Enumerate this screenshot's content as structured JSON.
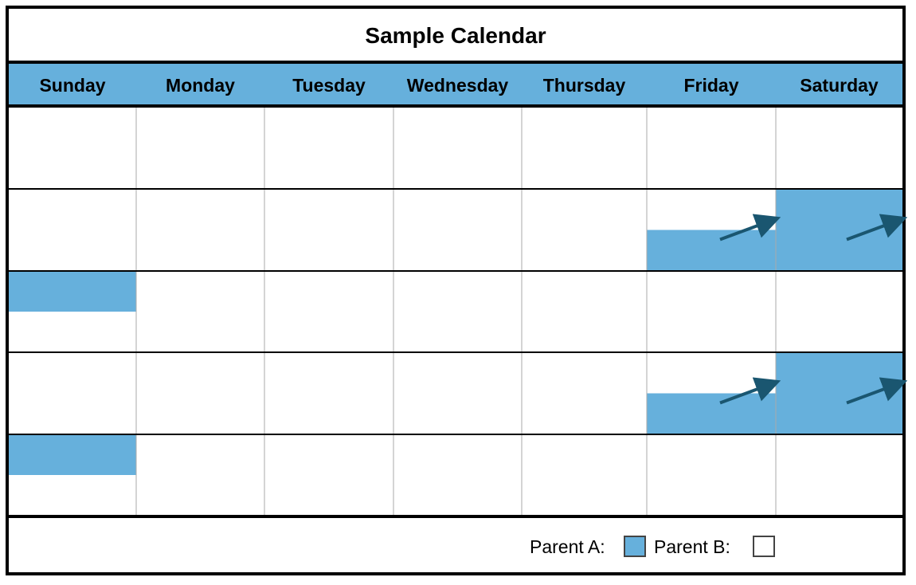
{
  "title": "Sample Calendar",
  "days": [
    "Sunday",
    "Monday",
    "Tuesday",
    "Wednesday",
    "Thursday",
    "Friday",
    "Saturday"
  ],
  "weeks": 5,
  "colors": {
    "parent_a": "#66b0dc",
    "header_bg": "#66b0dc",
    "arrow": "#1a5670",
    "border": "#000000",
    "grid": "#aaaaaa"
  },
  "custody_blocks": [
    {
      "week": 1,
      "day": 5,
      "span": "bottom-half",
      "parent": "A"
    },
    {
      "week": 1,
      "day": 6,
      "span": "full",
      "parent": "A"
    },
    {
      "week": 2,
      "day": 0,
      "span": "top-half",
      "parent": "A"
    },
    {
      "week": 3,
      "day": 5,
      "span": "bottom-half",
      "parent": "A"
    },
    {
      "week": 3,
      "day": 6,
      "span": "full",
      "parent": "A"
    },
    {
      "week": 4,
      "day": 0,
      "span": "top-half",
      "parent": "A"
    }
  ],
  "continuation_arrows": [
    {
      "week": 1,
      "day": 5
    },
    {
      "week": 1,
      "day": 6
    },
    {
      "week": 3,
      "day": 5
    },
    {
      "week": 3,
      "day": 6
    }
  ],
  "legend": {
    "parent_a_label": "Parent A:",
    "parent_b_label": "Parent B:",
    "parent_a_color": "#66b0dc",
    "parent_b_color": "#ffffff"
  }
}
